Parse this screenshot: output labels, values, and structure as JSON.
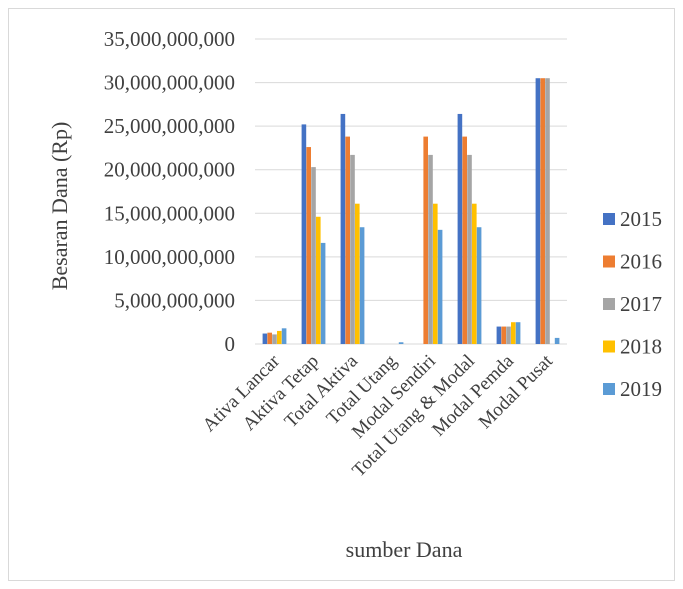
{
  "chart_data": {
    "type": "bar",
    "categories": [
      "Ativa Lancar",
      "Aktiva Tetap",
      "Total Aktiva",
      "Total Utang",
      "Modal Sendiri",
      "Total Utang & Modal",
      "Modal Pemda",
      "Modal Pusat"
    ],
    "series": [
      {
        "name": "2015",
        "color": "#4472c4",
        "values": [
          1200000000,
          25200000000,
          26400000000,
          0,
          0,
          26400000000,
          2000000000,
          30500000000
        ]
      },
      {
        "name": "2016",
        "color": "#ed7d31",
        "values": [
          1300000000,
          22600000000,
          23800000000,
          0,
          23800000000,
          23800000000,
          2000000000,
          30500000000
        ]
      },
      {
        "name": "2017",
        "color": "#a5a5a5",
        "values": [
          1100000000,
          20300000000,
          21700000000,
          0,
          21700000000,
          21700000000,
          2000000000,
          30500000000
        ]
      },
      {
        "name": "2018",
        "color": "#ffc000",
        "values": [
          1500000000,
          14600000000,
          16100000000,
          0,
          16100000000,
          16100000000,
          2500000000,
          0
        ]
      },
      {
        "name": "2019",
        "color": "#5b9bd5",
        "values": [
          1800000000,
          11600000000,
          13400000000,
          200000000,
          13100000000,
          13400000000,
          2500000000,
          700000000
        ]
      }
    ],
    "yticks": [
      "0",
      "5,000,000,000",
      "10,000,000,000",
      "15,000,000,000",
      "20,000,000,000",
      "25,000,000,000",
      "30,000,000,000",
      "35,000,000,000"
    ],
    "ylim": [
      0,
      35000000000
    ],
    "xlabel": "sumber Dana",
    "ylabel": "Besaran Dana (Rp)",
    "grid": true,
    "legend_position": "right"
  }
}
